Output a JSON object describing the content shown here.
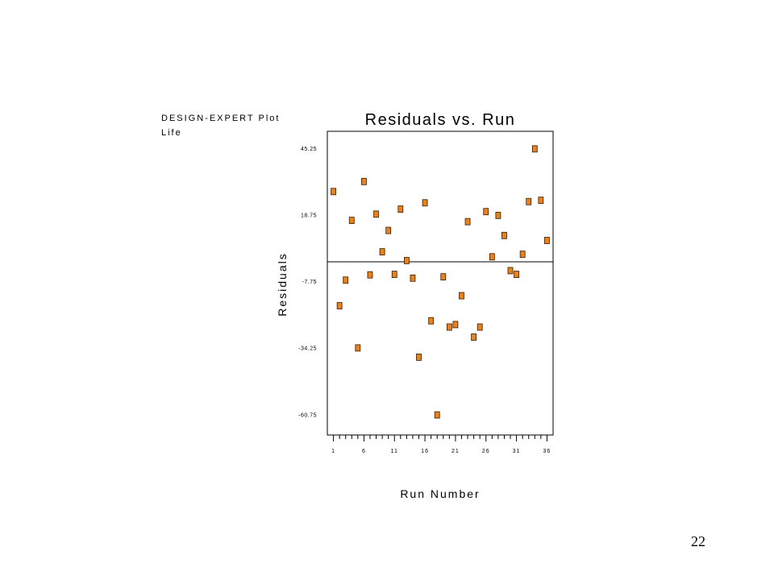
{
  "header": {
    "line1": "DESIGN-EXPERT Plot",
    "line2": "Life"
  },
  "page_number": "22",
  "colors": {
    "marker_fill": "#E8821E",
    "marker_stroke": "#3a1a00",
    "axis": "#000000"
  },
  "chart_data": {
    "type": "scatter",
    "title": "Residuals vs. Run",
    "xlabel": "Run Number",
    "ylabel": "Residuals",
    "xlim": [
      0,
      37
    ],
    "ylim": [
      -69,
      52
    ],
    "x_ticks": [
      1,
      6,
      11,
      16,
      21,
      26,
      31,
      36
    ],
    "x_tick_labels": [
      "1",
      "6",
      "11",
      "16",
      "21",
      "26",
      "31",
      "36"
    ],
    "y_ticks": [
      45.25,
      18.75,
      -7.75,
      -34.25,
      -60.75
    ],
    "y_tick_labels": [
      "45.25",
      "18.75",
      "-7.75",
      "-34.25",
      "-60.75"
    ],
    "reference_line_y": 0,
    "grid": false,
    "x": [
      1,
      2,
      3,
      4,
      5,
      6,
      7,
      8,
      9,
      10,
      11,
      12,
      13,
      14,
      15,
      16,
      17,
      18,
      19,
      20,
      21,
      22,
      23,
      24,
      25,
      26,
      27,
      28,
      29,
      30,
      31,
      32,
      33,
      34,
      35,
      36
    ],
    "y": [
      28,
      -17.5,
      -7.3,
      16.5,
      -34.3,
      32,
      -5.2,
      19,
      4,
      12.5,
      -5,
      21,
      0.5,
      -6.5,
      -38,
      23.5,
      -23.5,
      -61,
      -6,
      -26,
      -25,
      -13.5,
      16,
      -30,
      -26,
      20,
      2,
      18.5,
      10.5,
      -3.5,
      -5,
      3,
      24,
      45,
      24.5,
      8.5
    ]
  }
}
